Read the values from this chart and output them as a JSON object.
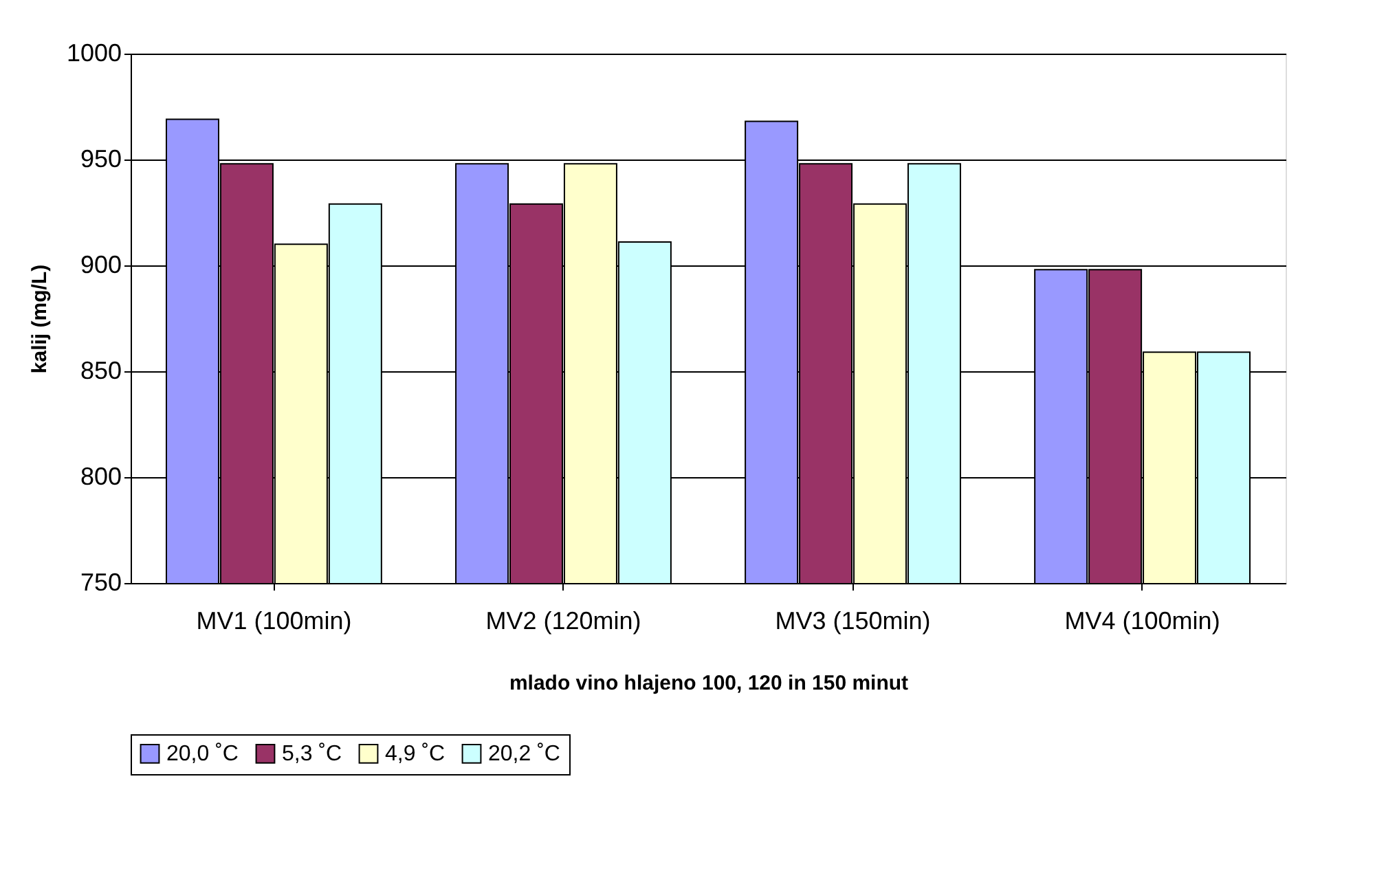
{
  "chart_data": {
    "type": "bar",
    "xlabel": "mlado vino hlajeno 100, 120 in 150 minut",
    "ylabel": "kalij (mg/L)",
    "categories": [
      "MV1 (100min)",
      "MV2 (120min)",
      "MV3 (150min)",
      "MV4 (100min)"
    ],
    "series": [
      {
        "name": "20,0 ˚C",
        "color": "#9999ff",
        "values": [
          969,
          948,
          968,
          898
        ]
      },
      {
        "name": "5,3 ˚C",
        "color": "#993366",
        "values": [
          948,
          929,
          948,
          898
        ]
      },
      {
        "name": "4,9 ˚C",
        "color": "#ffffcc",
        "values": [
          910,
          948,
          929,
          859
        ]
      },
      {
        "name": "20,2 ˚C",
        "color": "#ccffff",
        "values": [
          929,
          911,
          948,
          859
        ]
      }
    ],
    "ylim": [
      750,
      1000
    ],
    "yticks": [
      750,
      800,
      850,
      900,
      950,
      1000
    ],
    "grid": "y",
    "legend": "bottom"
  }
}
